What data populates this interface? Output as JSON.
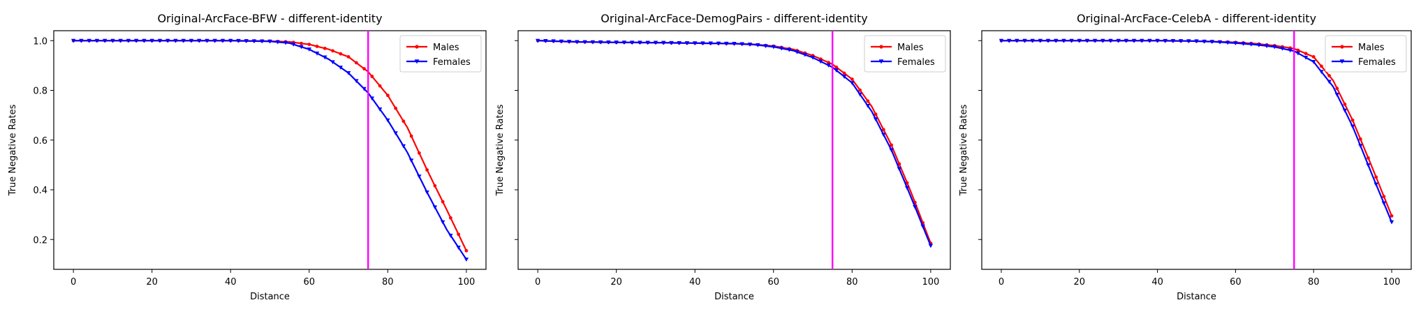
{
  "figure": {
    "colors": {
      "males": "#ff0000",
      "females": "#0000ff",
      "threshold": "#ff00ff"
    }
  },
  "chart_data": [
    {
      "type": "line",
      "title": "Original-ArcFace-BFW - different-identity",
      "xlabel": "Distance",
      "ylabel": "True Negative Rates",
      "xlim": [
        -5,
        105
      ],
      "ylim": [
        0.08,
        1.04
      ],
      "xticks": [
        0,
        20,
        40,
        60,
        80,
        100
      ],
      "yticks": [
        0.2,
        0.4,
        0.6,
        0.8,
        1.0
      ],
      "ytick_labels_visible": true,
      "grid": false,
      "legend": "top-right",
      "threshold_x": 75,
      "series": [
        {
          "name": "Males",
          "color": "#ff0000",
          "marker": "dot",
          "x": [
            0,
            10,
            20,
            30,
            40,
            50,
            55,
            60,
            65,
            70,
            75,
            80,
            85,
            90,
            95,
            100
          ],
          "y": [
            1.0,
            1.0,
            1.0,
            1.0,
            1.0,
            0.998,
            0.995,
            0.985,
            0.965,
            0.935,
            0.875,
            0.78,
            0.65,
            0.48,
            0.32,
            0.155
          ]
        },
        {
          "name": "Females",
          "color": "#0000ff",
          "marker": "triangle-down",
          "x": [
            0,
            10,
            20,
            30,
            40,
            50,
            55,
            60,
            65,
            70,
            75,
            80,
            85,
            90,
            95,
            100
          ],
          "y": [
            1.0,
            1.0,
            1.0,
            1.0,
            1.0,
            0.997,
            0.99,
            0.965,
            0.925,
            0.87,
            0.79,
            0.68,
            0.55,
            0.39,
            0.24,
            0.12
          ]
        }
      ]
    },
    {
      "type": "line",
      "title": "Original-ArcFace-DemogPairs - different-identity",
      "xlabel": "Distance",
      "ylabel": "True Negative Rates",
      "xlim": [
        -5,
        105
      ],
      "ylim": [
        0.08,
        1.04
      ],
      "xticks": [
        0,
        20,
        40,
        60,
        80,
        100
      ],
      "yticks": [
        0.2,
        0.4,
        0.6,
        0.8,
        1.0
      ],
      "ytick_labels_visible": false,
      "grid": false,
      "legend": "top-right",
      "threshold_x": 75,
      "series": [
        {
          "name": "Males",
          "color": "#ff0000",
          "marker": "dot",
          "x": [
            0,
            10,
            20,
            30,
            40,
            50,
            55,
            60,
            65,
            70,
            75,
            80,
            85,
            90,
            95,
            100
          ],
          "y": [
            1.0,
            0.995,
            0.993,
            0.992,
            0.99,
            0.988,
            0.985,
            0.978,
            0.965,
            0.94,
            0.905,
            0.845,
            0.735,
            0.58,
            0.39,
            0.185
          ]
        },
        {
          "name": "Females",
          "color": "#0000ff",
          "marker": "triangle-down",
          "x": [
            0,
            10,
            20,
            30,
            40,
            50,
            55,
            60,
            65,
            70,
            75,
            80,
            85,
            90,
            95,
            100
          ],
          "y": [
            1.0,
            0.995,
            0.993,
            0.992,
            0.99,
            0.988,
            0.984,
            0.975,
            0.96,
            0.932,
            0.893,
            0.83,
            0.715,
            0.56,
            0.37,
            0.175
          ]
        }
      ]
    },
    {
      "type": "line",
      "title": "Original-ArcFace-CelebA - different-identity",
      "xlabel": "Distance",
      "ylabel": "True Negative Rates",
      "xlim": [
        -5,
        105
      ],
      "ylim": [
        0.08,
        1.04
      ],
      "xticks": [
        0,
        20,
        40,
        60,
        80,
        100
      ],
      "yticks": [
        0.2,
        0.4,
        0.6,
        0.8,
        1.0
      ],
      "ytick_labels_visible": false,
      "grid": false,
      "legend": "top-right",
      "threshold_x": 75,
      "series": [
        {
          "name": "Males",
          "color": "#ff0000",
          "marker": "dot",
          "x": [
            0,
            10,
            20,
            30,
            40,
            50,
            55,
            60,
            65,
            70,
            75,
            80,
            85,
            90,
            95,
            100
          ],
          "y": [
            1.0,
            1.0,
            1.0,
            1.0,
            1.0,
            0.998,
            0.996,
            0.993,
            0.988,
            0.98,
            0.968,
            0.935,
            0.84,
            0.68,
            0.49,
            0.295
          ]
        },
        {
          "name": "Females",
          "color": "#0000ff",
          "marker": "triangle-down",
          "x": [
            0,
            10,
            20,
            30,
            40,
            50,
            55,
            60,
            65,
            70,
            75,
            80,
            85,
            90,
            95,
            100
          ],
          "y": [
            1.0,
            1.0,
            1.0,
            1.0,
            1.0,
            0.998,
            0.995,
            0.99,
            0.984,
            0.975,
            0.958,
            0.915,
            0.815,
            0.655,
            0.46,
            0.27
          ]
        }
      ]
    }
  ]
}
